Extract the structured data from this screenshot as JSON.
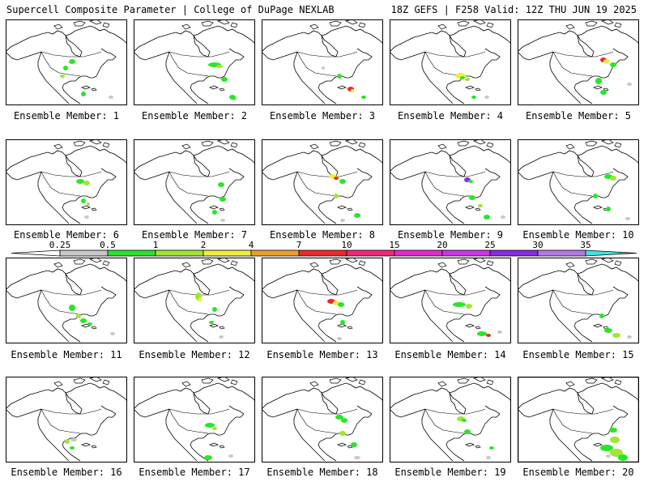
{
  "header": {
    "title": "Supercell Composite Parameter | College of DuPage NEXLAB",
    "run_info": "18Z GEFS | F258 Valid: 12Z THU JUN 19 2025"
  },
  "colorbar": {
    "levels": [
      "0.25",
      "0.5",
      "1",
      "2",
      "4",
      "7",
      "10",
      "15",
      "20",
      "25",
      "30",
      "35"
    ],
    "colors": [
      "#c8c8c8",
      "#28e628",
      "#a0e632",
      "#f0f03c",
      "#f0a028",
      "#f02828",
      "#f0287a",
      "#e628d2",
      "#d232f0",
      "#8c28e6",
      "#b478e6",
      "#3ce6e6"
    ]
  },
  "members": [
    {
      "label": "Ensemble Member: 1"
    },
    {
      "label": "Ensemble Member: 2"
    },
    {
      "label": "Ensemble Member: 3"
    },
    {
      "label": "Ensemble Member: 4"
    },
    {
      "label": "Ensemble Member: 5"
    },
    {
      "label": "Ensemble Member: 6"
    },
    {
      "label": "Ensemble Member: 7"
    },
    {
      "label": "Ensemble Member: 8"
    },
    {
      "label": "Ensemble Member: 9"
    },
    {
      "label": "Ensemble Member: 10"
    },
    {
      "label": "Ensemble Member: 11"
    },
    {
      "label": "Ensemble Member: 12"
    },
    {
      "label": "Ensemble Member: 13"
    },
    {
      "label": "Ensemble Member: 14"
    },
    {
      "label": "Ensemble Member: 15"
    },
    {
      "label": "Ensemble Member: 16"
    },
    {
      "label": "Ensemble Member: 17"
    },
    {
      "label": "Ensemble Member: 18"
    },
    {
      "label": "Ensemble Member: 19"
    },
    {
      "label": "Ensemble Member: 20"
    }
  ]
}
